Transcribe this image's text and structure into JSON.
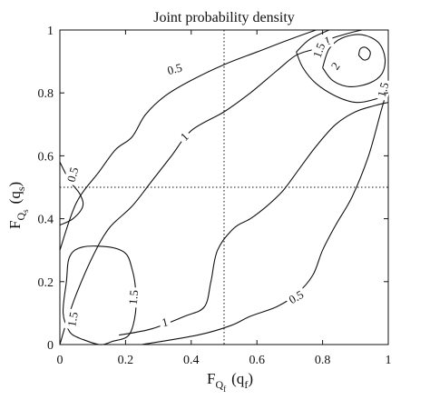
{
  "chart_data": {
    "type": "contour",
    "title": "Joint probability density",
    "xlabel": {
      "main": "F",
      "sub": "Q",
      "subsub": "f",
      "arg_open": "(q",
      "arg_sub": "f",
      "arg_close": ")"
    },
    "ylabel": {
      "main": "F",
      "sub": "Q",
      "subsub": "s",
      "arg_open": "(q",
      "arg_sub": "s",
      "arg_close": ")"
    },
    "xlim": [
      0,
      1
    ],
    "ylim": [
      0,
      1
    ],
    "xticks": [
      0,
      0.2,
      0.4,
      0.6,
      0.8,
      1
    ],
    "yticks": [
      0,
      0.2,
      0.4,
      0.6,
      0.8,
      1
    ],
    "xtick_labels": [
      "0",
      "0.2",
      "0.4",
      "0.6",
      "0.8",
      "1"
    ],
    "ytick_labels": [
      "0",
      "0.2",
      "0.4",
      "0.6",
      "0.8",
      "1"
    ],
    "reference_lines": [
      {
        "orientation": "vertical",
        "value": 0.5,
        "style": "dotted"
      },
      {
        "orientation": "horizontal",
        "value": 0.5,
        "style": "dotted"
      }
    ],
    "contours": [
      {
        "level": 0.5,
        "label": "0.5",
        "label_at": [
          0.35,
          0.875
        ],
        "label_angle": -15,
        "points": [
          [
            0,
            0.3
          ],
          [
            0.05,
            0.45
          ],
          [
            0.12,
            0.55
          ],
          [
            0.17,
            0.62
          ],
          [
            0.22,
            0.66
          ],
          [
            0.26,
            0.73
          ],
          [
            0.32,
            0.79
          ],
          [
            0.4,
            0.84
          ],
          [
            0.5,
            0.89
          ],
          [
            0.6,
            0.93
          ],
          [
            0.7,
            0.97
          ],
          [
            0.78,
            1.0
          ]
        ]
      },
      {
        "level": 0.5,
        "label": "0.5",
        "label_at": [
          0.04,
          0.54
        ],
        "label_angle": -75,
        "points": [
          [
            0,
            0.58
          ],
          [
            0.03,
            0.52
          ],
          [
            0.06,
            0.48
          ],
          [
            0.07,
            0.44
          ],
          [
            0.04,
            0.4
          ],
          [
            0.0,
            0.38
          ]
        ]
      },
      {
        "level": 0.5,
        "label": "0.5",
        "label_at": [
          0.72,
          0.15
        ],
        "label_angle": -30,
        "points": [
          [
            0.25,
            0.0
          ],
          [
            0.42,
            0.03
          ],
          [
            0.52,
            0.06
          ],
          [
            0.58,
            0.09
          ],
          [
            0.66,
            0.12
          ],
          [
            0.72,
            0.16
          ],
          [
            0.77,
            0.22
          ],
          [
            0.8,
            0.3
          ],
          [
            0.84,
            0.38
          ],
          [
            0.89,
            0.47
          ],
          [
            0.94,
            0.6
          ],
          [
            0.98,
            0.75
          ],
          [
            1.0,
            0.82
          ]
        ]
      },
      {
        "level": 1,
        "label": "1",
        "label_at": [
          0.38,
          0.66
        ],
        "label_angle": -45,
        "points": [
          [
            0,
            0.0
          ],
          [
            0.02,
            0.07
          ],
          [
            0.05,
            0.16
          ],
          [
            0.1,
            0.28
          ],
          [
            0.15,
            0.37
          ],
          [
            0.22,
            0.44
          ],
          [
            0.28,
            0.52
          ],
          [
            0.34,
            0.6
          ],
          [
            0.4,
            0.68
          ],
          [
            0.5,
            0.74
          ],
          [
            0.58,
            0.8
          ],
          [
            0.66,
            0.87
          ],
          [
            0.72,
            0.92
          ],
          [
            0.78,
            0.94
          ]
        ]
      },
      {
        "level": 1,
        "label": "1",
        "label_at": [
          0.815,
          0.965
        ],
        "label_angle": -15,
        "points": [
          [
            0.78,
            0.94
          ],
          [
            0.82,
            0.97
          ],
          [
            0.88,
            0.99
          ],
          [
            0.92,
            1.0
          ]
        ]
      },
      {
        "level": 1,
        "label": "1",
        "label_at": [
          0.32,
          0.07
        ],
        "label_angle": -15,
        "points": [
          [
            0.18,
            0.03
          ],
          [
            0.28,
            0.05
          ],
          [
            0.38,
            0.09
          ],
          [
            0.44,
            0.12
          ],
          [
            0.46,
            0.2
          ],
          [
            0.48,
            0.3
          ],
          [
            0.53,
            0.37
          ],
          [
            0.58,
            0.4
          ],
          [
            0.63,
            0.44
          ],
          [
            0.68,
            0.49
          ],
          [
            0.73,
            0.56
          ],
          [
            0.78,
            0.63
          ],
          [
            0.84,
            0.7
          ],
          [
            0.9,
            0.74
          ],
          [
            0.96,
            0.76
          ],
          [
            1.0,
            0.77
          ]
        ]
      },
      {
        "level": 1.5,
        "label": "1.5",
        "label_at": [
          0.79,
          0.935
        ],
        "label_angle": -70,
        "points": [
          [
            0.72,
            0.93
          ],
          [
            0.74,
            0.88
          ],
          [
            0.78,
            0.83
          ],
          [
            0.84,
            0.79
          ],
          [
            0.9,
            0.77
          ],
          [
            0.96,
            0.78
          ],
          [
            1.0,
            0.8
          ]
        ]
      },
      {
        "level": 1.5,
        "label": "1.5",
        "label_at": [
          0.985,
          0.81
        ],
        "label_angle": -75,
        "points": [
          [
            0.72,
            0.93
          ],
          [
            0.76,
            0.97
          ],
          [
            0.82,
            1.0
          ]
        ]
      },
      {
        "level": 2,
        "label": "2",
        "label_at": [
          0.84,
          0.885
        ],
        "label_angle": -55,
        "points": [
          [
            0.8,
            0.88
          ],
          [
            0.83,
            0.84
          ],
          [
            0.88,
            0.82
          ],
          [
            0.94,
            0.83
          ],
          [
            0.98,
            0.86
          ],
          [
            0.99,
            0.91
          ],
          [
            0.97,
            0.96
          ],
          [
            0.92,
            0.985
          ],
          [
            0.86,
            0.975
          ],
          [
            0.82,
            0.94
          ],
          [
            0.8,
            0.88
          ]
        ]
      },
      {
        "level": 2.5,
        "label": "",
        "label_at": null,
        "label_angle": 0,
        "points": [
          [
            0.91,
            0.92
          ],
          [
            0.925,
            0.905
          ],
          [
            0.94,
            0.91
          ],
          [
            0.945,
            0.93
          ],
          [
            0.93,
            0.945
          ],
          [
            0.915,
            0.94
          ],
          [
            0.91,
            0.92
          ]
        ]
      },
      {
        "level": 1.5,
        "label": "1.5",
        "label_at": [
          0.04,
          0.08
        ],
        "label_angle": -80,
        "points": [
          [
            0.06,
            0.02
          ],
          [
            0.12,
            0.0
          ],
          [
            0.16,
            0.01
          ],
          [
            0.21,
            0.03
          ],
          [
            0.23,
            0.1
          ],
          [
            0.23,
            0.18
          ],
          [
            0.22,
            0.24
          ],
          [
            0.2,
            0.29
          ],
          [
            0.15,
            0.31
          ],
          [
            0.07,
            0.31
          ],
          [
            0.03,
            0.28
          ],
          [
            0.02,
            0.2
          ],
          [
            0.01,
            0.1
          ],
          [
            0.03,
            0.04
          ],
          [
            0.06,
            0.02
          ]
        ]
      },
      {
        "level": 1.5,
        "label": "1.5",
        "label_at": [
          0.225,
          0.15
        ],
        "label_angle": -85,
        "points": []
      }
    ]
  }
}
